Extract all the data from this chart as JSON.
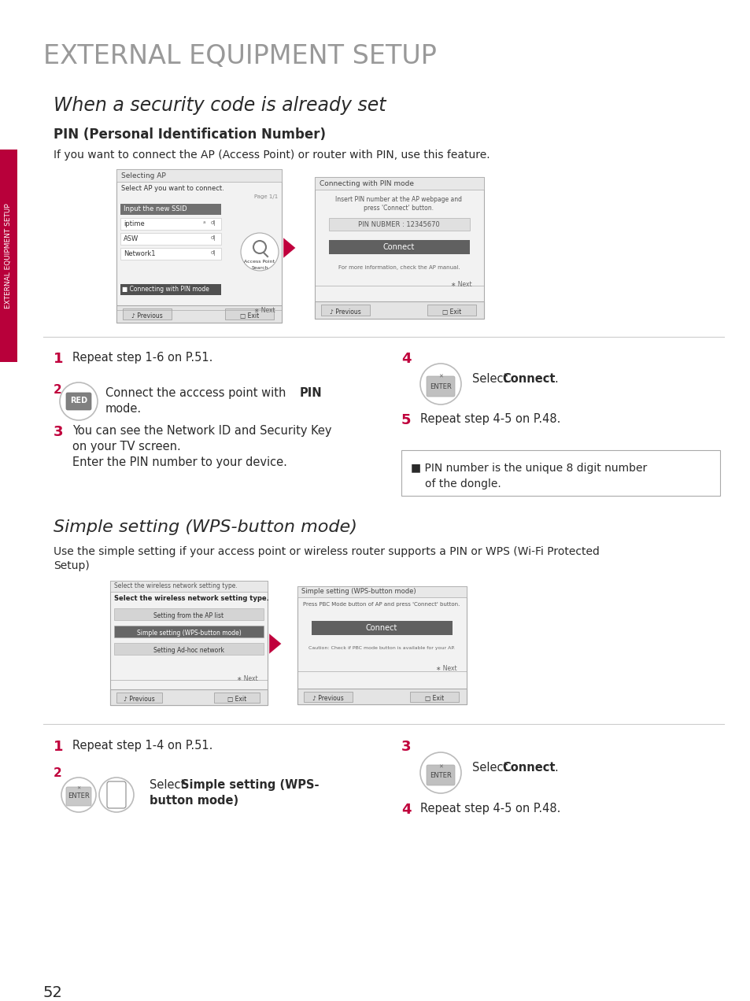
{
  "page_title": "EXTERNAL EQUIPMENT SETUP",
  "section1_title": "When a security code is already set",
  "subsection1_title": "PIN (Personal Identification Number)",
  "subsection1_desc": "If you want to connect the AP (Access Point) or router with PIN, use this feature.",
  "section2_title": "Simple setting (WPS-button mode)",
  "section2_desc1": "Use the simple setting if your access point or wireless router supports a PIN or WPS (Wi-Fi Protected",
  "section2_desc2": "Setup)",
  "sidebar_text": "EXTERNAL EQUIPMENT SETUP",
  "page_number": "52",
  "bg_color": "#ffffff",
  "title_color": "#999999",
  "text_color": "#2a2a2a",
  "red_color": "#c0003c",
  "box_bg": "#eeeeee",
  "box_border": "#bbbbbb",
  "dark_btn": "#606060",
  "sidebar_bg": "#b8003a"
}
